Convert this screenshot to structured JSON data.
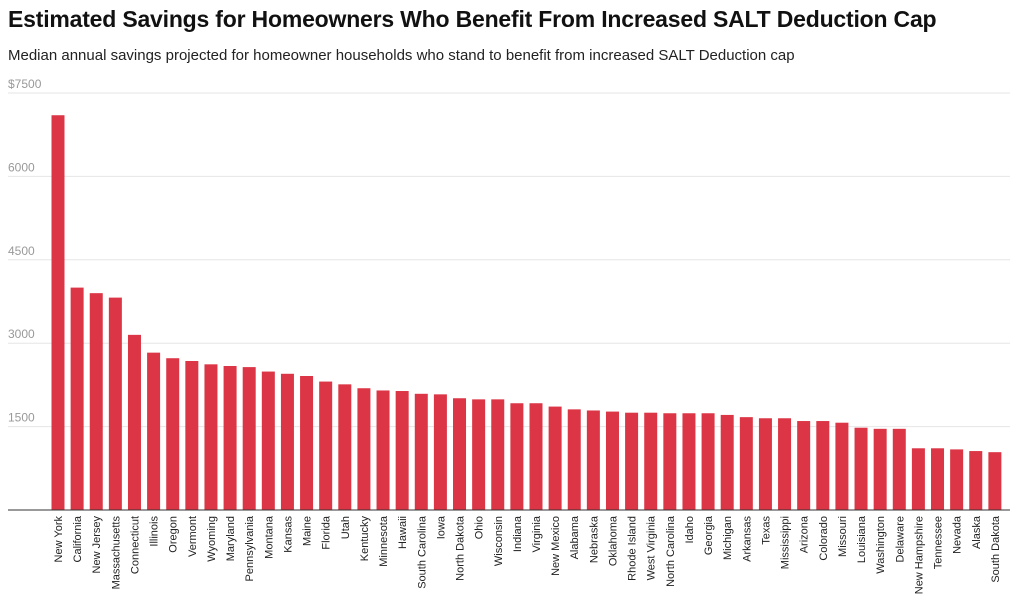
{
  "chart_data": {
    "type": "bar",
    "title": "Estimated Savings for Homeowners Who Benefit From Increased SALT Deduction Cap",
    "subtitle": "Median annual savings projected for homeowner households who stand to benefit from increased SALT Deduction cap",
    "xlabel": "",
    "ylabel": "",
    "ylim": [
      0,
      7500
    ],
    "yticks": [
      1500,
      3000,
      4500,
      6000,
      7500
    ],
    "ytick_labels": [
      "1500",
      "3000",
      "4500",
      "6000",
      "$7500"
    ],
    "grid": true,
    "categories": [
      "New York",
      "California",
      "New Jersey",
      "Massachusetts",
      "Connecticut",
      "Illinois",
      "Oregon",
      "Vermont",
      "Wyoming",
      "Maryland",
      "Pennsylvania",
      "Montana",
      "Kansas",
      "Maine",
      "Florida",
      "Utah",
      "Kentucky",
      "Minnesota",
      "Hawaii",
      "South Carolina",
      "Iowa",
      "North Dakota",
      "Ohio",
      "Wisconsin",
      "Indiana",
      "Virginia",
      "New Mexico",
      "Alabama",
      "Nebraska",
      "Oklahoma",
      "Rhode Island",
      "West Virginia",
      "North Carolina",
      "Idaho",
      "Georgia",
      "Michigan",
      "Arkansas",
      "Texas",
      "Mississippi",
      "Arizona",
      "Colorado",
      "Missouri",
      "Louisiana",
      "Washington",
      "Delaware",
      "New Hampshire",
      "Tennessee",
      "Nevada",
      "Alaska",
      "South Dakota"
    ],
    "values": [
      7100,
      4000,
      3900,
      3820,
      3150,
      2830,
      2730,
      2680,
      2620,
      2590,
      2570,
      2490,
      2450,
      2410,
      2310,
      2260,
      2190,
      2150,
      2140,
      2090,
      2080,
      2010,
      1990,
      1990,
      1920,
      1920,
      1860,
      1810,
      1790,
      1770,
      1750,
      1750,
      1740,
      1740,
      1740,
      1710,
      1670,
      1650,
      1650,
      1600,
      1600,
      1570,
      1480,
      1460,
      1460,
      1110,
      1110,
      1090,
      1060,
      1040
    ],
    "bar_color": "#dc3545",
    "grid_color": "#e6e6e6",
    "axis_color": "#333333",
    "tick_label_color": "#999999"
  }
}
